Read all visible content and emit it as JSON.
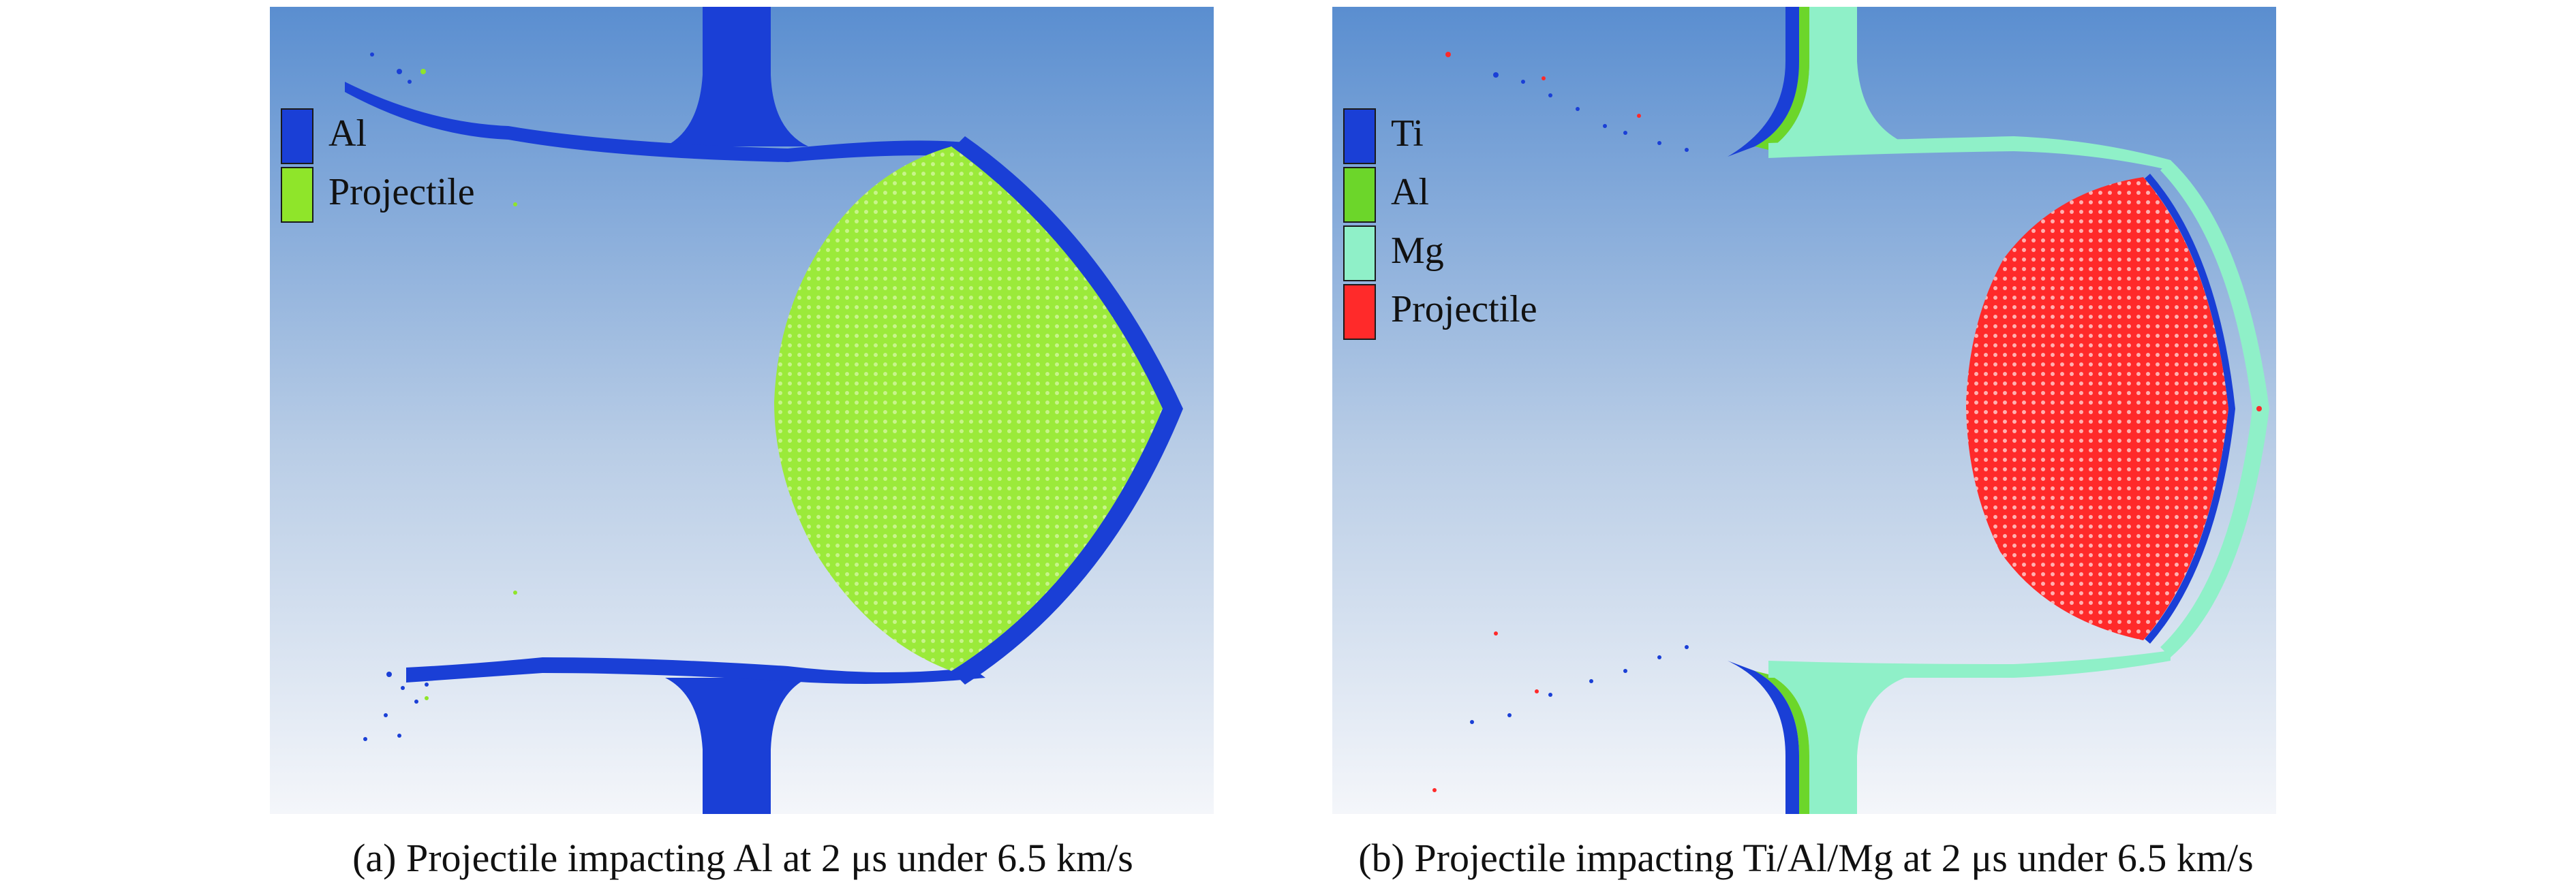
{
  "panel_a": {
    "legend": [
      {
        "label": "Al",
        "color": "#1a3fd6"
      },
      {
        "label": "Projectile",
        "color": "#8fe52a"
      }
    ],
    "caption": "(a) Projectile impacting Al at 2 μs under 6.5 km/s"
  },
  "panel_b": {
    "legend": [
      {
        "label": "Ti",
        "color": "#1a3fd6"
      },
      {
        "label": "Al",
        "color": "#6cd62a"
      },
      {
        "label": "Mg",
        "color": "#8ff0c8"
      },
      {
        "label": "Projectile",
        "color": "#ff2a2a"
      }
    ],
    "caption": "(b) Projectile impacting Ti/Al/Mg at 2 μs under 6.5 km/s"
  },
  "colors": {
    "background_top": "#5a8ed0",
    "background_bottom": "#f4f6fa"
  }
}
